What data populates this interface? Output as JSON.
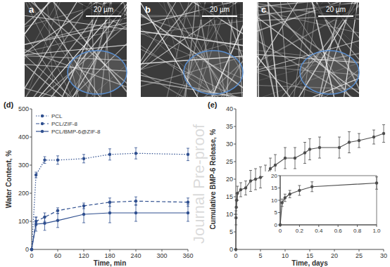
{
  "images": [
    {
      "label": "a",
      "scale_bar": "20 µm"
    },
    {
      "label": "b",
      "scale_bar": "20 µm"
    },
    {
      "label": "c",
      "scale_bar": "20 µm"
    }
  ],
  "watermark": "Journal Pre-proof",
  "chart_data": [
    {
      "type": "line",
      "title": "(d)",
      "x_label": "Time, min",
      "y_label": "Water Content, %",
      "x": [
        0,
        10,
        30,
        60,
        120,
        180,
        240,
        360
      ],
      "xlim": [
        0,
        360
      ],
      "xticks": [
        0,
        60,
        120,
        180,
        240,
        300,
        360
      ],
      "ylim": [
        0,
        500
      ],
      "yticks": [
        0,
        100,
        200,
        300,
        400,
        500
      ],
      "grid": false,
      "legend": "upper left",
      "series": [
        {
          "name": "PCL",
          "color": "#2f4f8f",
          "line_style": "dotted",
          "marker": "circle",
          "values": [
            0,
            265,
            318,
            318,
            323,
            338,
            342,
            338
          ],
          "errors": [
            0,
            10,
            12,
            15,
            15,
            20,
            20,
            22
          ]
        },
        {
          "name": "PCL/ZIF-8",
          "color": "#2f4f8f",
          "line_style": "dashed",
          "marker": "circle",
          "values": [
            0,
            100,
            115,
            138,
            155,
            168,
            172,
            168
          ],
          "errors": [
            0,
            15,
            15,
            10,
            10,
            15,
            15,
            15
          ]
        },
        {
          "name": "PCL/BMP-6@ZIF-8",
          "color": "#2f4f8f",
          "line_style": "solid",
          "marker": "circle",
          "values": [
            0,
            90,
            93,
            103,
            125,
            130,
            130,
            130
          ],
          "errors": [
            0,
            25,
            25,
            25,
            30,
            35,
            30,
            30
          ]
        }
      ]
    },
    {
      "type": "line",
      "title": "(e)",
      "x_label": "Time, days",
      "y_label": "Cumulative BMP-6 Release, %",
      "x": [
        0,
        0.04,
        0.08,
        0.17,
        0.33,
        1,
        2,
        3,
        4,
        5,
        6,
        7,
        8,
        10,
        12,
        14,
        15,
        17,
        21,
        23,
        25,
        28,
        30
      ],
      "xlim": [
        0,
        30
      ],
      "xticks": [
        0,
        5,
        10,
        15,
        20,
        25,
        30
      ],
      "ylim": [
        0,
        40
      ],
      "yticks": [
        0,
        5,
        10,
        15,
        20,
        25,
        30,
        35,
        40
      ],
      "grid": false,
      "series": [
        {
          "color": "#4d4d4d",
          "line_style": "solid",
          "marker": "circle",
          "values": [
            0,
            9,
            12,
            14,
            16,
            17,
            17.5,
            19.5,
            20,
            20.5,
            21,
            23,
            24,
            26,
            26,
            27.5,
            28.5,
            29,
            29,
            30.5,
            31,
            32,
            33
          ],
          "errors": [
            0,
            2,
            2,
            2,
            2,
            2,
            2,
            3,
            3,
            3,
            3,
            3,
            3,
            3,
            3,
            3,
            3,
            3,
            3,
            3,
            2,
            2,
            2.5
          ]
        }
      ]
    },
    {
      "type": "line",
      "x": [
        0,
        0.02,
        0.05,
        0.1,
        0.2,
        0.33,
        1
      ],
      "xlim": [
        0,
        1
      ],
      "xticks": [
        0,
        0.2,
        0.4,
        0.6,
        0.8,
        {
          "value": 1,
          "label": "1.0"
        }
      ],
      "ylim": [
        0,
        20
      ],
      "yticks": [
        0,
        5,
        10,
        15,
        20
      ],
      "grid": false,
      "series": [
        {
          "color": "#4d4d4d",
          "line_style": "solid",
          "marker": "circle",
          "values": [
            0,
            9,
            11,
            12.5,
            14,
            15.5,
            17
          ],
          "errors": [
            0,
            1.5,
            1.5,
            1.5,
            2,
            2,
            2.5
          ]
        }
      ]
    }
  ]
}
